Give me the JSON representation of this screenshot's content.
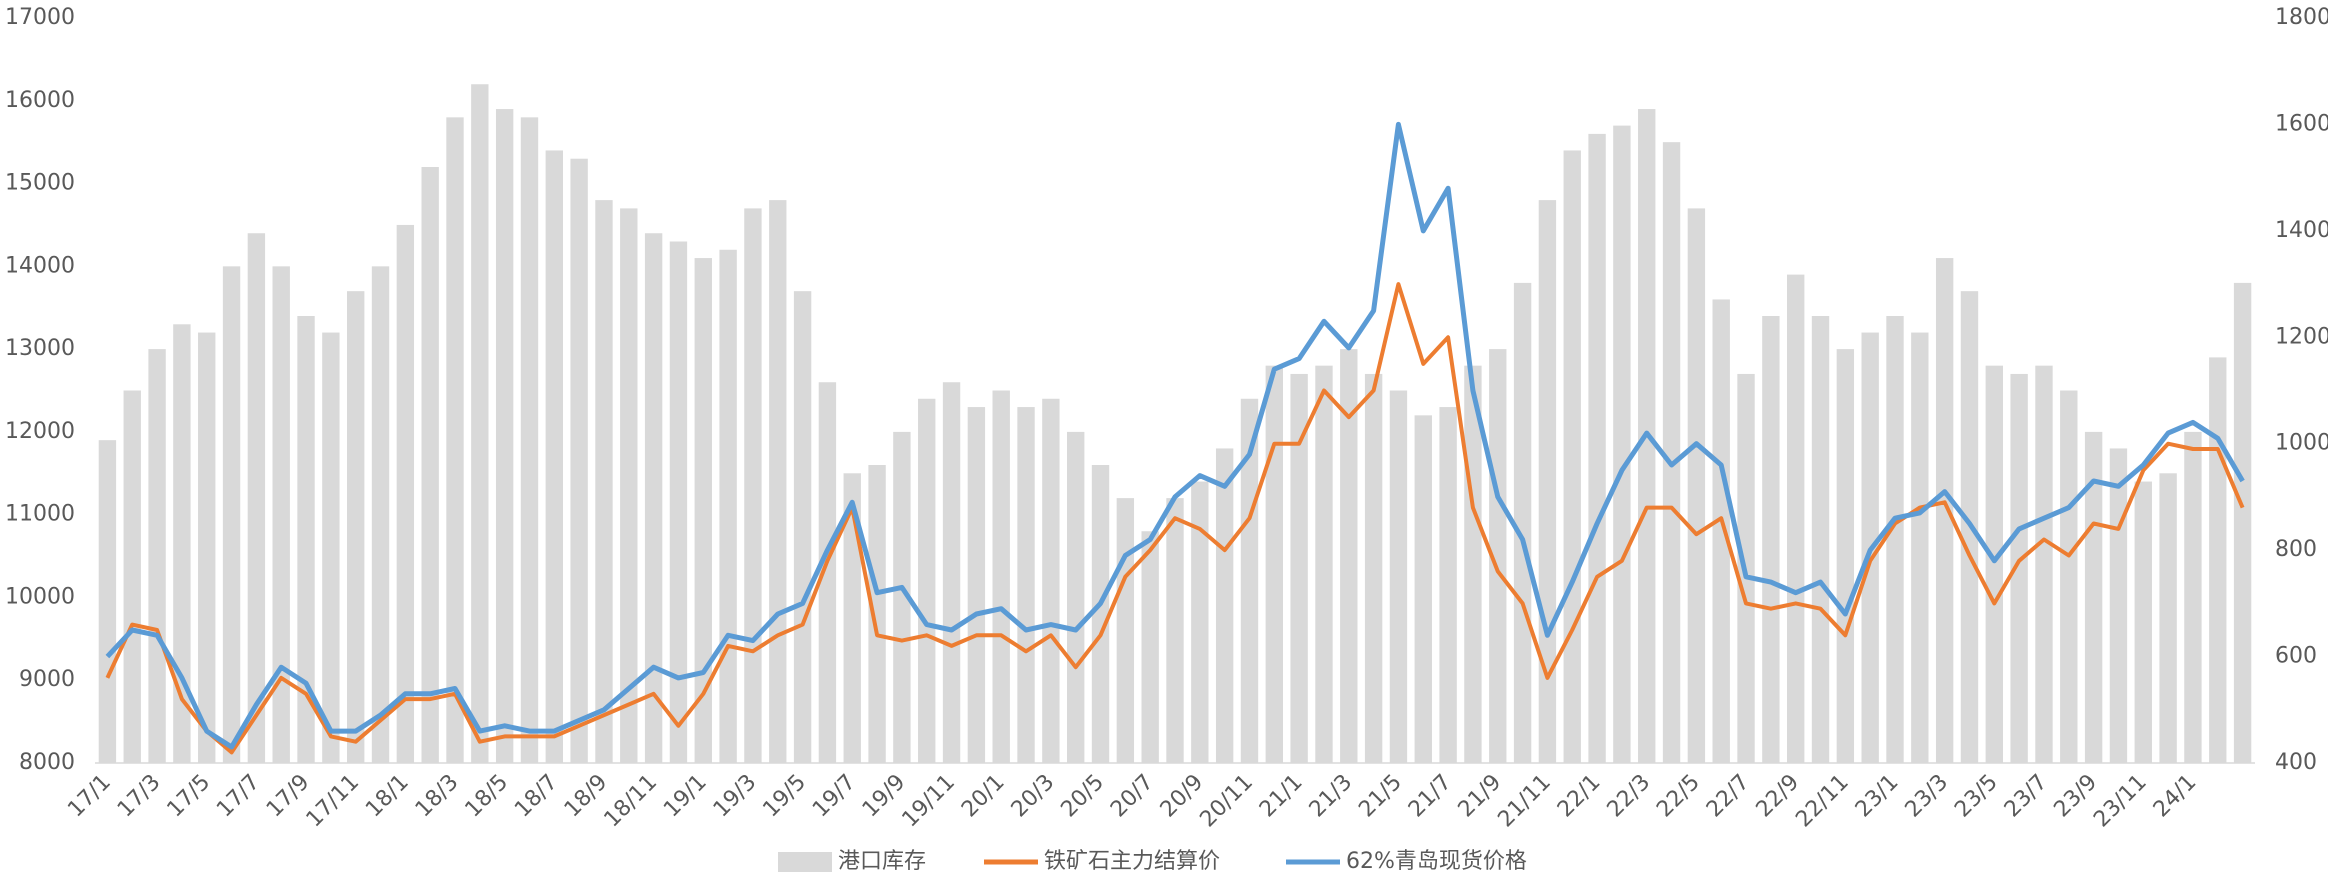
{
  "chart_data": {
    "type": "combo",
    "categories": [
      "17/1",
      null,
      "17/3",
      null,
      "17/5",
      null,
      "17/7",
      null,
      "17/9",
      null,
      "17/11",
      null,
      "18/1",
      null,
      "18/3",
      null,
      "18/5",
      null,
      "18/7",
      null,
      "18/9",
      null,
      "18/11",
      null,
      "19/1",
      null,
      "19/3",
      null,
      "19/5",
      null,
      "19/7",
      null,
      "19/9",
      null,
      "19/11",
      null,
      "20/1",
      null,
      "20/3",
      null,
      "20/5",
      null,
      "20/7",
      null,
      "20/9",
      null,
      "20/11",
      null,
      "21/1",
      null,
      "21/3",
      null,
      "21/5",
      null,
      "21/7",
      null,
      "21/9",
      null,
      "21/11",
      null,
      "22/1",
      null,
      "22/3",
      null,
      "22/5",
      null,
      "22/7",
      null,
      "22/9",
      null,
      "22/11",
      null,
      "23/1",
      null,
      "23/3",
      null,
      "23/5",
      null,
      "23/7",
      null,
      "23/9",
      null,
      "23/11",
      null,
      "24/1",
      null,
      null
    ],
    "series": [
      {
        "name": "港口库存",
        "type": "bar",
        "color": "#d9d9d9",
        "values": [
          11900,
          12500,
          13000,
          13300,
          13200,
          14000,
          14400,
          14000,
          13400,
          13200,
          13700,
          14000,
          14500,
          15200,
          15800,
          16200,
          15900,
          15800,
          15400,
          15300,
          14800,
          14700,
          14400,
          14300,
          14100,
          14200,
          14700,
          14800,
          13700,
          12600,
          11500,
          11600,
          12000,
          12400,
          12600,
          12300,
          12500,
          12300,
          12400,
          12000,
          11600,
          11200,
          10800,
          11200,
          11400,
          11800,
          12400,
          12800,
          12700,
          12800,
          13000,
          12700,
          12500,
          12200,
          12300,
          12800,
          13000,
          13800,
          14800,
          15400,
          15600,
          15700,
          15900,
          15500,
          14700,
          13600,
          12700,
          13400,
          13900,
          13400,
          13000,
          13200,
          13400,
          13200,
          14100,
          13700,
          12800,
          12700,
          12800,
          12500,
          12000,
          11800,
          11400,
          11500,
          12000,
          12900,
          13800
        ]
      },
      {
        "name": "铁矿石主力结算价",
        "type": "line",
        "axis": "y2",
        "color": "#ed7d31",
        "values": [
          560,
          660,
          650,
          520,
          460,
          420,
          490,
          560,
          530,
          450,
          440,
          480,
          520,
          520,
          530,
          440,
          450,
          450,
          450,
          470,
          490,
          510,
          530,
          470,
          530,
          620,
          610,
          640,
          660,
          780,
          880,
          640,
          630,
          640,
          620,
          640,
          640,
          610,
          640,
          580,
          640,
          750,
          800,
          860,
          840,
          800,
          860,
          1000,
          1000,
          1100,
          1050,
          1100,
          1300,
          1150,
          1200,
          880,
          760,
          700,
          560,
          650,
          750,
          780,
          880,
          880,
          830,
          860,
          700,
          690,
          700,
          690,
          640,
          780,
          850,
          880,
          890,
          790,
          700,
          780,
          820,
          790,
          850,
          840,
          950,
          1000,
          990,
          990,
          880
        ]
      },
      {
        "name": "62%青岛现货价格",
        "type": "line",
        "axis": "y2",
        "color": "#5b9bd5",
        "values": [
          600,
          650,
          640,
          560,
          460,
          430,
          510,
          580,
          550,
          460,
          460,
          490,
          530,
          530,
          540,
          460,
          470,
          460,
          460,
          480,
          500,
          540,
          580,
          560,
          570,
          640,
          630,
          680,
          700,
          800,
          890,
          720,
          730,
          660,
          650,
          680,
          690,
          650,
          660,
          650,
          700,
          790,
          820,
          900,
          940,
          920,
          980,
          1140,
          1160,
          1230,
          1180,
          1250,
          1600,
          1400,
          1480,
          1100,
          900,
          820,
          640,
          740,
          850,
          950,
          1020,
          960,
          1000,
          960,
          750,
          740,
          720,
          740,
          680,
          800,
          860,
          870,
          910,
          850,
          780,
          840,
          860,
          880,
          930,
          920,
          960,
          1020,
          1040,
          1010,
          930
        ]
      }
    ],
    "ylim": [
      8000,
      17000
    ],
    "yticks": [
      8000,
      9000,
      10000,
      11000,
      12000,
      13000,
      14000,
      15000,
      16000,
      17000
    ],
    "y2lim": [
      400,
      1800
    ],
    "y2ticks": [
      400,
      600,
      800,
      1000,
      1200,
      1400,
      1600,
      1800
    ],
    "grid": false,
    "legend": "bottom"
  }
}
